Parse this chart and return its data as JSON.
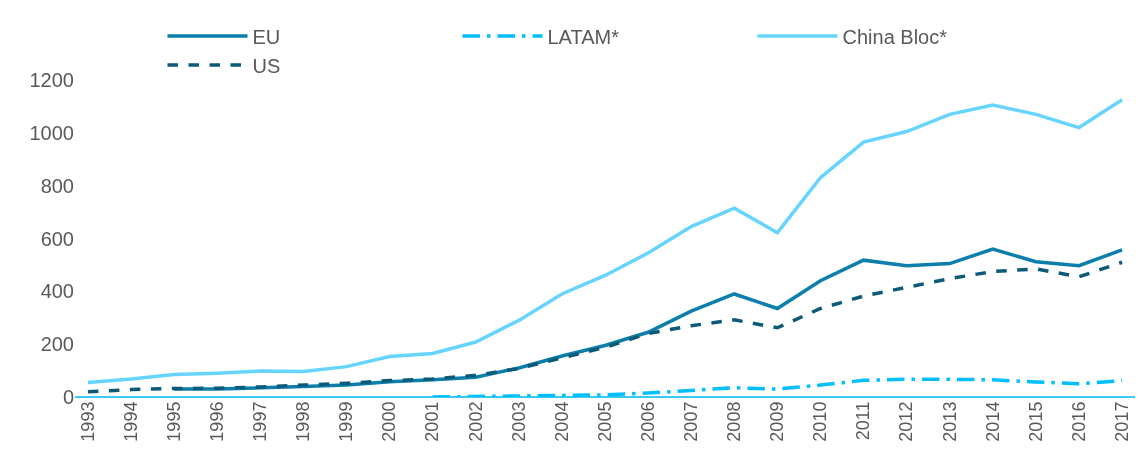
{
  "chart_data": {
    "type": "line",
    "categories": [
      "1993",
      "1994",
      "1995",
      "1996",
      "1997",
      "1998",
      "1999",
      "2000",
      "2001",
      "2002",
      "2003",
      "2004",
      "2005",
      "2006",
      "2007",
      "2008",
      "2009",
      "2010",
      "2011",
      "2012",
      "2013",
      "2014",
      "2015",
      "2016",
      "2017"
    ],
    "series": [
      {
        "name": "EU",
        "color": "#0b7eab",
        "line_style": "solid",
        "values": [
          null,
          null,
          30,
          30,
          35,
          40,
          45,
          58,
          65,
          75,
          110,
          155,
          195,
          245,
          325,
          390,
          335,
          440,
          518,
          497,
          505,
          560,
          512,
          497,
          557
        ]
      },
      {
        "name": "LATAM*",
        "color": "#00bfff",
        "line_style": "dashdot",
        "values": [
          null,
          null,
          null,
          null,
          null,
          null,
          null,
          null,
          0,
          2,
          4,
          6,
          8,
          15,
          25,
          35,
          30,
          45,
          63,
          67,
          67,
          65,
          57,
          50,
          62
        ]
      },
      {
        "name": "China Bloc*",
        "color": "#66d4ff",
        "line_style": "solid",
        "values": [
          55,
          68,
          85,
          90,
          98,
          97,
          115,
          153,
          165,
          208,
          290,
          390,
          460,
          545,
          645,
          715,
          622,
          830,
          965,
          1005,
          1070,
          1105,
          1070,
          1020,
          1125
        ]
      },
      {
        "name": "US",
        "color": "#0b5a78",
        "line_style": "dashed",
        "values": [
          20,
          28,
          32,
          33,
          38,
          45,
          52,
          62,
          68,
          82,
          108,
          148,
          188,
          240,
          270,
          292,
          262,
          335,
          382,
          415,
          448,
          475,
          485,
          455,
          510
        ]
      }
    ],
    "ylim": [
      0,
      1200
    ],
    "yticks": [
      0,
      200,
      400,
      600,
      800,
      1000,
      1200
    ],
    "legend": "top",
    "marker": "none"
  }
}
